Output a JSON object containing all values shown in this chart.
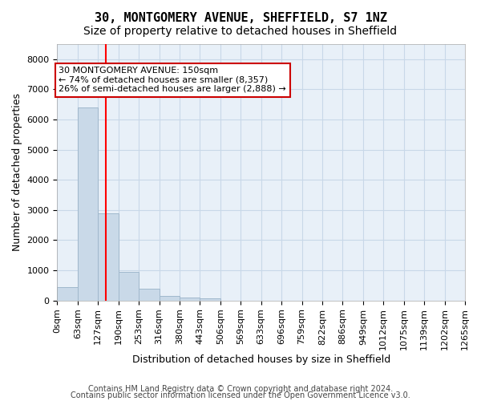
{
  "title_line1": "30, MONTGOMERY AVENUE, SHEFFIELD, S7 1NZ",
  "title_line2": "Size of property relative to detached houses in Sheffield",
  "xlabel": "Distribution of detached houses by size in Sheffield",
  "ylabel": "Number of detached properties",
  "bar_values": [
    450,
    6400,
    2900,
    950,
    380,
    150,
    100,
    60,
    0,
    0,
    0,
    0,
    0,
    0,
    0,
    0,
    0,
    0,
    0,
    0
  ],
  "bin_labels": [
    "0sqm",
    "63sqm",
    "127sqm",
    "190sqm",
    "253sqm",
    "316sqm",
    "380sqm",
    "443sqm",
    "506sqm",
    "569sqm",
    "633sqm",
    "696sqm",
    "759sqm",
    "822sqm",
    "886sqm",
    "949sqm",
    "1012sqm",
    "1075sqm",
    "1139sqm",
    "1202sqm",
    "1265sqm"
  ],
  "bar_color": "#c9d9e8",
  "bar_edgecolor": "#a0b8cc",
  "red_line_x": 150,
  "bin_width": 63,
  "annotation_text": "30 MONTGOMERY AVENUE: 150sqm\n← 74% of detached houses are smaller (8,357)\n26% of semi-detached houses are larger (2,888) →",
  "annotation_box_color": "#ffffff",
  "annotation_box_edgecolor": "#cc0000",
  "ylim": [
    0,
    8500
  ],
  "yticks": [
    0,
    1000,
    2000,
    3000,
    4000,
    5000,
    6000,
    7000,
    8000
  ],
  "background_color": "#ffffff",
  "grid_color": "#c8d8e8",
  "footer_line1": "Contains HM Land Registry data © Crown copyright and database right 2024.",
  "footer_line2": "Contains public sector information licensed under the Open Government Licence v3.0.",
  "title_fontsize": 11,
  "subtitle_fontsize": 10,
  "axis_label_fontsize": 9,
  "tick_fontsize": 8,
  "annotation_fontsize": 8,
  "footer_fontsize": 7
}
